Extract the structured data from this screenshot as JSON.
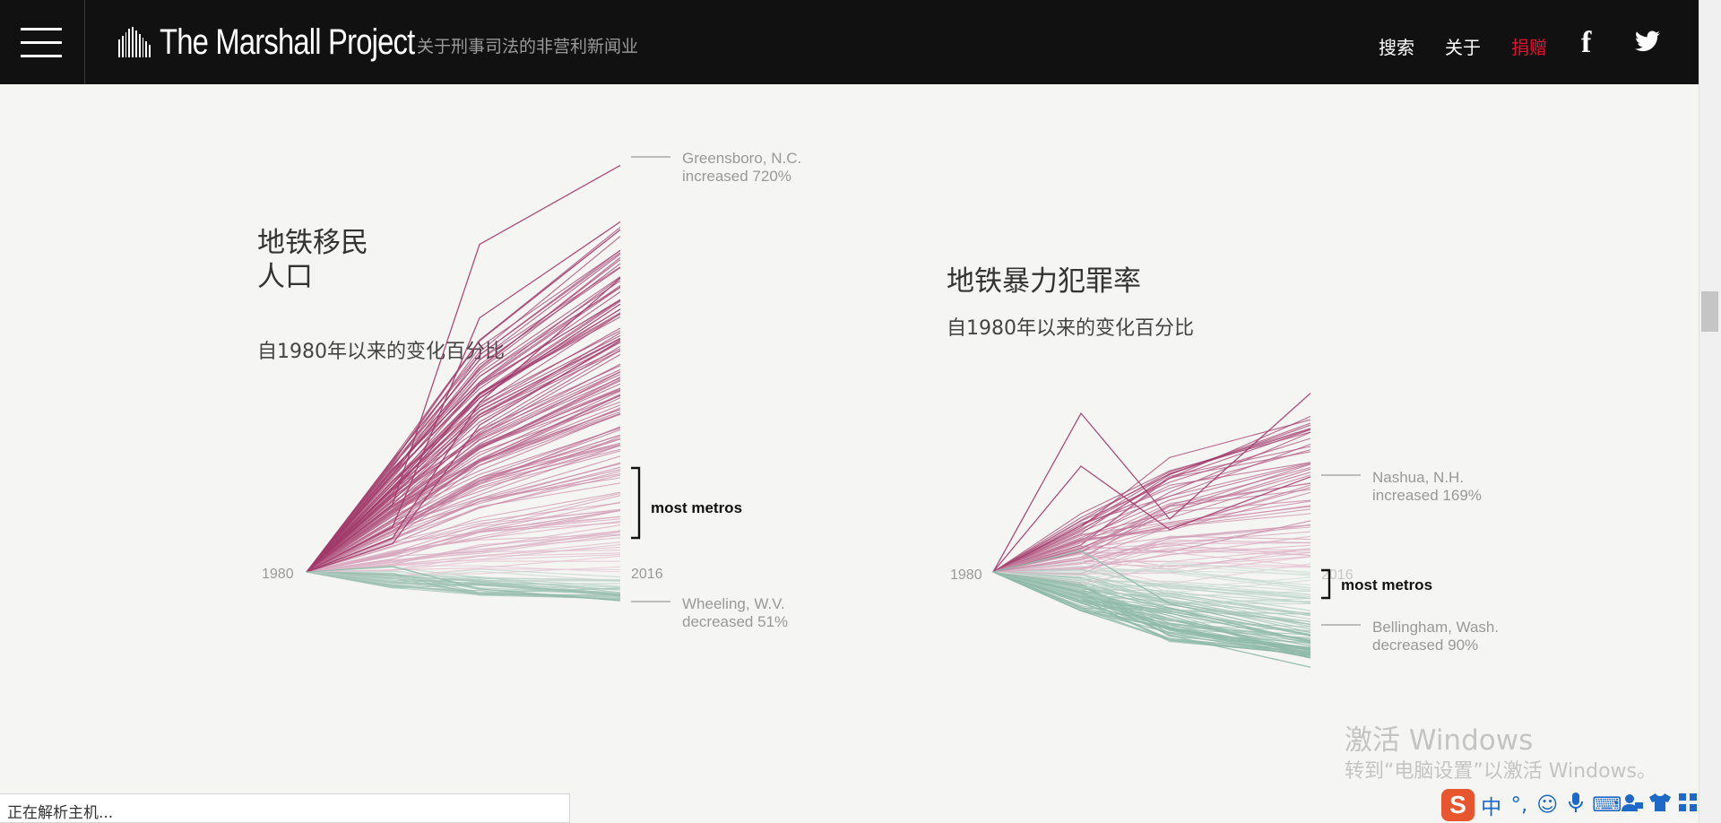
{
  "header": {
    "brand": "The Marshall Project",
    "tagline": "关于刑事司法的非营利新闻业",
    "nav": {
      "search": "搜索",
      "about": "关于",
      "donate": "捐赠"
    },
    "facebook_icon": "f",
    "colors": {
      "bar": "#111111",
      "donate": "#e8102e"
    }
  },
  "charts": [
    {
      "title": "地铁移民\n人口",
      "subtitle": "自1980年以来的变化百分比",
      "x_start_label": "1980",
      "x_end_label": "2016",
      "top_annotation": {
        "city": "Greensboro, N.C.",
        "change": "increased 720%"
      },
      "bottom_annotation": {
        "city": "Wheeling, W.V.",
        "change": "decreased 51%"
      },
      "most_label": "most metros"
    },
    {
      "title": "地铁暴力犯罪率",
      "subtitle": "自1980年以来的变化百分比",
      "x_start_label": "1980",
      "x_end_label": "2016",
      "top_annotation": {
        "city": "Nashua, N.H.",
        "change": "increased 169%"
      },
      "bottom_annotation": {
        "city": "Bellingham, Wash.",
        "change": "decreased 90%"
      },
      "most_label": "most metros"
    }
  ],
  "chart_data": [
    {
      "type": "line",
      "x": [
        1980,
        1990,
        2000,
        2016
      ],
      "ylim": [
        -51,
        720
      ],
      "series": [
        {
          "values": [
            0,
            120,
            580,
            720
          ]
        },
        {
          "values": [
            0,
            80,
            450,
            620
          ]
        },
        {
          "values": [
            0,
            60,
            300,
            520
          ]
        },
        {
          "values": [
            0,
            50,
            260,
            410
          ]
        },
        {
          "values": [
            0,
            10,
            -30,
            -51
          ]
        }
      ],
      "colors": {
        "increase": "#a23b6b",
        "decrease": "#8fb9a8"
      }
    },
    {
      "type": "line",
      "x": [
        1980,
        1990,
        2000,
        2016
      ],
      "ylim": [
        -90,
        169
      ],
      "series": [
        {
          "values": [
            0,
            150,
            50,
            169
          ]
        },
        {
          "values": [
            0,
            100,
            40,
            90
          ]
        },
        {
          "values": [
            0,
            20,
            -30,
            -60
          ]
        },
        {
          "values": [
            0,
            -20,
            -60,
            -90
          ]
        }
      ],
      "colors": {
        "increase": "#a23b6b",
        "decrease": "#8fb9a8"
      }
    }
  ],
  "watermark": {
    "title": "激活 Windows",
    "subtitle": "转到“电脑设置”以激活 Windows。"
  },
  "status": {
    "text": "正在解析主机..."
  },
  "ime": {
    "logo": "S",
    "icons": [
      "zh-mode-icon",
      "punctuation-icon",
      "emoji-icon",
      "mic-icon",
      "keyboard-icon",
      "user-icon",
      "skin-icon",
      "apps-icon"
    ],
    "mode_label": "中",
    "punct_label": "°,"
  }
}
